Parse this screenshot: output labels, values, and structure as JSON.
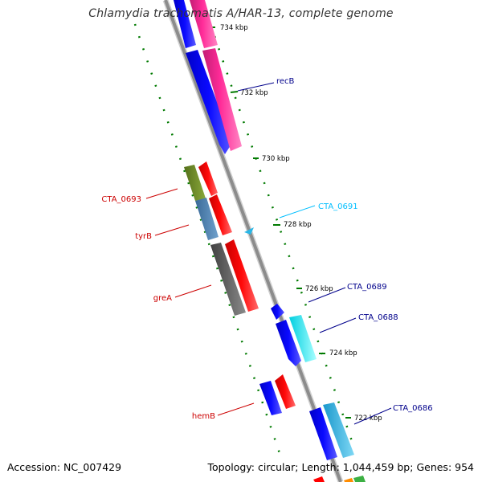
{
  "title": "Chlamydia trachomatis A/HAR-13, complete genome",
  "footer": {
    "accession_label": "Accession:",
    "accession": "NC_007429",
    "topology_label": "Topology:",
    "topology": "circular",
    "length_label": "Length:",
    "length": "1,044,459 bp",
    "genes_label": "Genes:",
    "genes": "954"
  },
  "ticks": [
    "734 kbp",
    "732 kbp",
    "730 kbp",
    "728 kbp",
    "726 kbp",
    "724 kbp",
    "722 kbp"
  ],
  "gene_labels": {
    "recB": "recB",
    "CTA_0693": "CTA_0693",
    "tyrB": "tyrB",
    "CTA_0691": "CTA_0691",
    "greA": "greA",
    "CTA_0689": "CTA_0689",
    "CTA_0688": "CTA_0688",
    "hemB": "hemB",
    "CTA_0686": "CTA_0686"
  },
  "colors": {
    "backbone": "#808080",
    "forward_strand": "#0000ff",
    "reverse_strand": "#ff0000",
    "recB": "#ff1a8c",
    "CTA_0691": "#29b6e6",
    "CTA_0688": "#00ffff",
    "CTA_0686": "#2bb8e8",
    "CTA_0693": "#6b8e23",
    "tyrB": "#4682b4",
    "greA": "#555555",
    "ruler": "#007a00",
    "label_red": "#cc0000",
    "label_blue": "#00008b",
    "label_cyan": "#00bfff"
  }
}
